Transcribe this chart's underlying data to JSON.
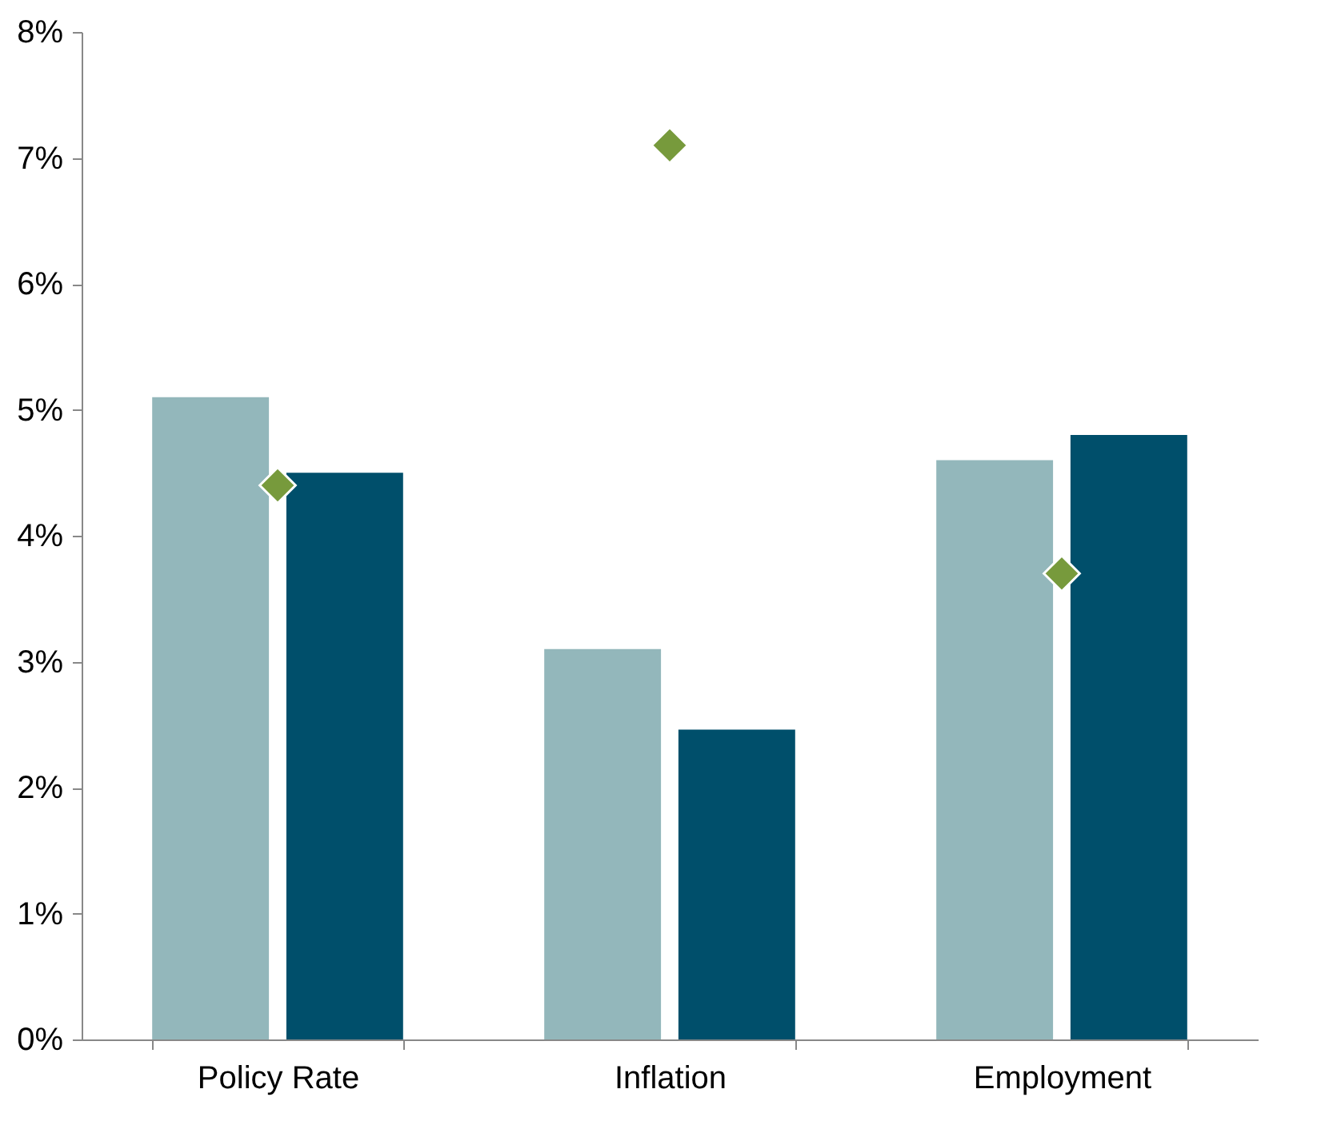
{
  "chart_data": {
    "type": "bar",
    "categories": [
      "Policy Rate",
      "Inflation",
      "Employment"
    ],
    "series": [
      {
        "color": "#93b7bb",
        "values": [
          5.1,
          3.1,
          4.6
        ]
      },
      {
        "color": "#004f6b",
        "values": [
          4.5,
          2.46,
          4.8
        ]
      },
      {
        "type": "scatter",
        "color": "#779a3c",
        "marker": "diamond",
        "x": [
          "Policy Rate",
          "Inflation",
          "Employment"
        ],
        "values": [
          4.4,
          7.1,
          3.7
        ]
      }
    ],
    "ylim": [
      0,
      8
    ],
    "yticks": [
      {
        "value": 0,
        "label": "0%"
      },
      {
        "value": 1,
        "label": "1%"
      },
      {
        "value": 2,
        "label": "2%"
      },
      {
        "value": 3,
        "label": "3%"
      },
      {
        "value": 4,
        "label": "4%"
      },
      {
        "value": 5,
        "label": "5%"
      },
      {
        "value": 6,
        "label": "6%"
      },
      {
        "value": 7,
        "label": "7%"
      },
      {
        "value": 8,
        "label": "8%"
      }
    ],
    "grid": false,
    "legend": false
  }
}
